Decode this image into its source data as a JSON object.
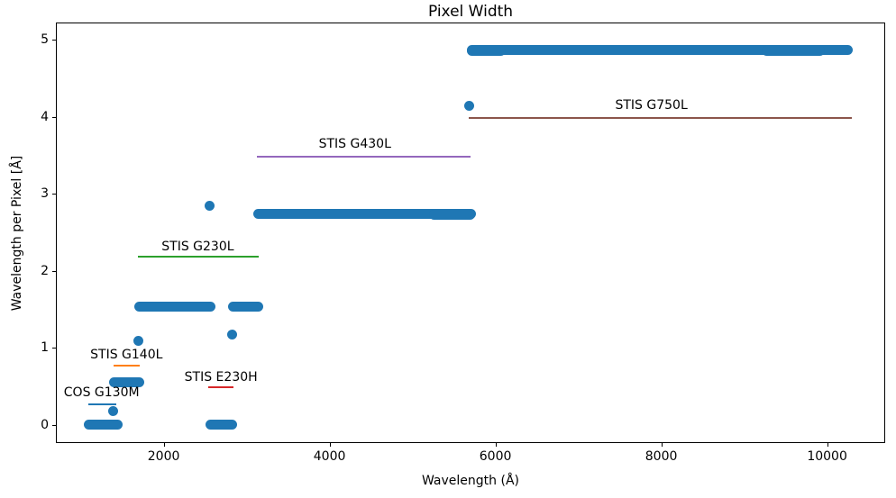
{
  "chart_data": {
    "type": "scatter",
    "title": "Pixel Width",
    "xlabel": "Wavelength (Å)",
    "ylabel": "Wavelength per Pixel [Å]",
    "xlim": [
      700,
      10700
    ],
    "ylim": [
      -0.235,
      5.225
    ],
    "xticks": [
      2000,
      4000,
      6000,
      8000,
      10000
    ],
    "yticks": [
      0,
      1,
      2,
      3,
      4,
      5
    ],
    "grid": false,
    "legend_position": "none",
    "marker_color": "#1f77b4",
    "scatter_bands": [
      {
        "y": 4.88,
        "x_start": 5700,
        "x_end": 10240
      },
      {
        "y": 4.87,
        "x_start": 5700,
        "x_end": 6050
      },
      {
        "y": 4.87,
        "x_start": 9260,
        "x_end": 9900
      },
      {
        "y": 2.75,
        "x_start": 3130,
        "x_end": 5690
      },
      {
        "y": 2.74,
        "x_start": 5250,
        "x_end": 5680
      },
      {
        "y": 1.55,
        "x_start": 1690,
        "x_end": 2550
      },
      {
        "y": 1.55,
        "x_start": 2820,
        "x_end": 3130
      },
      {
        "y": 0.57,
        "x_start": 1390,
        "x_end": 1690
      },
      {
        "y": 0.015,
        "x_start": 1090,
        "x_end": 1430
      },
      {
        "y": 0.015,
        "x_start": 2550,
        "x_end": 2810
      }
    ],
    "scatter_points": [
      {
        "x": 5670,
        "y": 4.15
      },
      {
        "x": 2540,
        "y": 2.86
      },
      {
        "x": 2810,
        "y": 1.19
      },
      {
        "x": 1680,
        "y": 1.1
      },
      {
        "x": 1375,
        "y": 0.19
      }
    ],
    "annotations": [
      {
        "label": "COS G130M",
        "color": "#1f77b4",
        "line_y": 0.28,
        "x_start": 1080,
        "x_end": 1420,
        "label_x": 1240,
        "label_y": 0.43
      },
      {
        "label": "STIS G140L",
        "color": "#ff7f0e",
        "line_y": 0.78,
        "x_start": 1385,
        "x_end": 1695,
        "label_x": 1540,
        "label_y": 0.92
      },
      {
        "label": "STIS E230H",
        "color": "#d62728",
        "line_y": 0.5,
        "x_start": 2530,
        "x_end": 2835,
        "label_x": 2680,
        "label_y": 0.63
      },
      {
        "label": "STIS G230L",
        "color": "#2ca02c",
        "line_y": 2.2,
        "x_start": 1675,
        "x_end": 3135,
        "label_x": 2400,
        "label_y": 2.32
      },
      {
        "label": "STIS G430L",
        "color": "#9467bd",
        "line_y": 3.5,
        "x_start": 3110,
        "x_end": 5690,
        "label_x": 4295,
        "label_y": 3.66
      },
      {
        "label": "STIS G750L",
        "color": "#8c564b",
        "line_y": 4.0,
        "x_start": 5670,
        "x_end": 10285,
        "label_x": 7870,
        "label_y": 4.16
      }
    ]
  }
}
